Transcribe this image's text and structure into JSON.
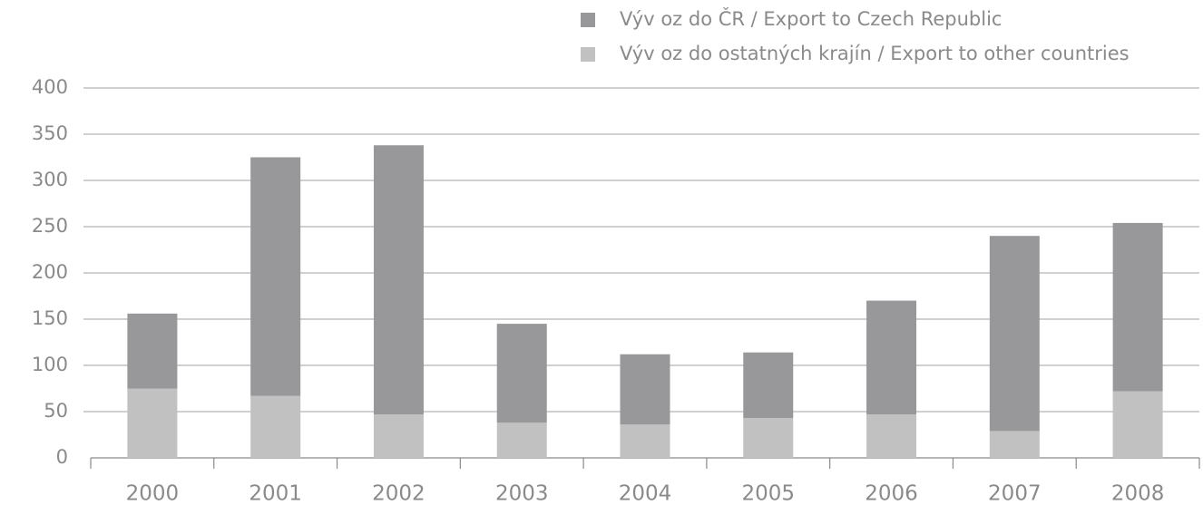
{
  "chart_data": {
    "type": "stacked_bar",
    "categories": [
      "2000",
      "2001",
      "2002",
      "2003",
      "2004",
      "2005",
      "2006",
      "2007",
      "2008"
    ],
    "series": [
      {
        "name": "Výv oz do ČR / Export to Czech Republic",
        "color": "#98979a",
        "values": [
          81,
          258,
          291,
          107,
          76,
          71,
          123,
          211,
          182
        ]
      },
      {
        "name": "Výv oz do ostatných krajín / Export to other countries",
        "color": "#c1c1c2",
        "values": [
          75,
          67,
          47,
          38,
          36,
          43,
          47,
          29,
          72
        ]
      }
    ],
    "ylim": [
      0,
      400
    ],
    "yticks": [
      0,
      50,
      100,
      150,
      200,
      250,
      300,
      350,
      400
    ],
    "grid": true,
    "legend": "top-right"
  }
}
